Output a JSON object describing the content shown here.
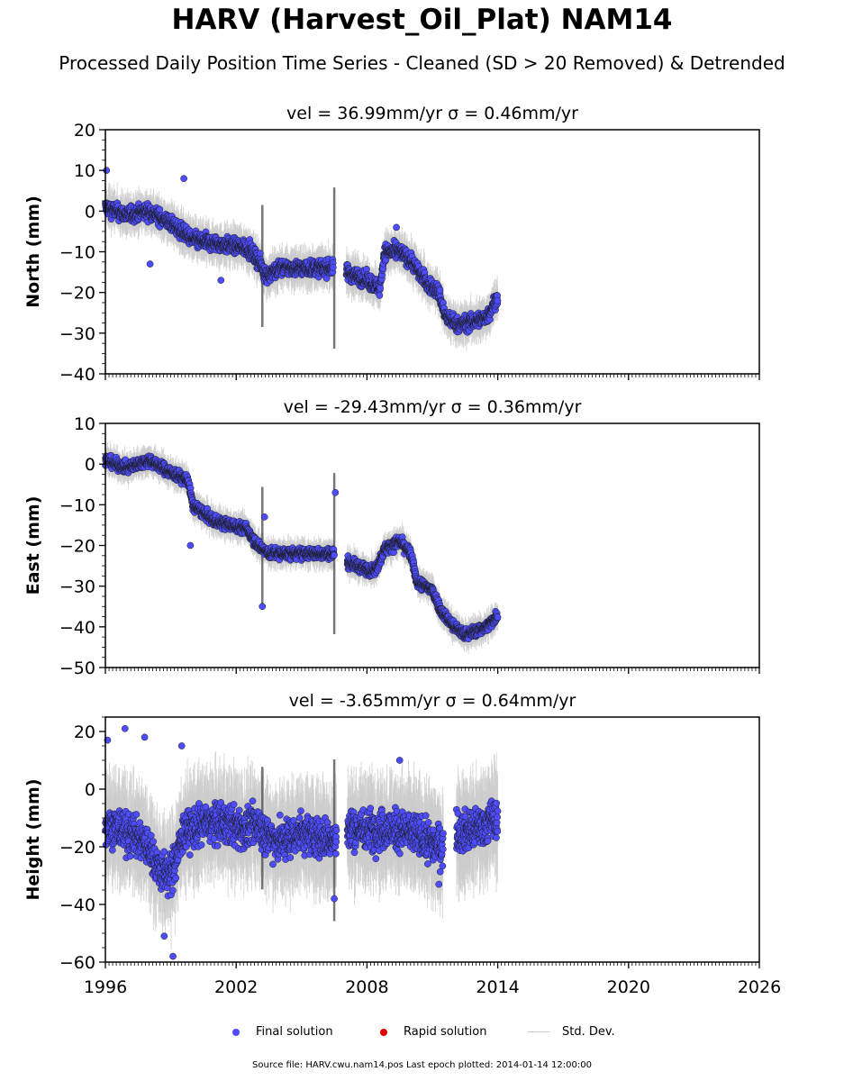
{
  "header": {
    "title": "HARV (Harvest_Oil_Plat) NAM14",
    "subtitle": "Processed Daily Position Time Series - Cleaned (SD > 20 Removed) & Detrended"
  },
  "legend": {
    "final": "Final solution",
    "rapid": "Rapid solution",
    "std": "Std. Dev."
  },
  "footer": "Source file: HARV.cwu.nam14.pos  Last epoch plotted: 2014-01-14 12:00:00",
  "colors": {
    "final": "#4d4dff",
    "rapid": "#dd0000",
    "std": "#cccccc",
    "marker_edge": "#1a1a1a"
  },
  "chart_data": [
    {
      "type": "scatter",
      "panel": "north",
      "title": "vel = 36.99mm/yr   σ = 0.46mm/yr",
      "ylabel": "North (mm)",
      "xlim": [
        1996,
        2026
      ],
      "ylim": [
        -40,
        20
      ],
      "yticks": [
        -40,
        -30,
        -20,
        -10,
        0,
        10,
        20
      ],
      "xticks": [
        1996,
        2002,
        2008,
        2014,
        2020,
        2026
      ],
      "noise": 2.2,
      "outliers": [
        [
          1996.05,
          10
        ],
        [
          1999.6,
          8
        ],
        [
          1998.05,
          -13
        ],
        [
          2001.3,
          -17
        ],
        [
          2009.35,
          -4
        ]
      ],
      "segments": [
        [
          1996.0,
          1
        ],
        [
          1997.0,
          -1
        ],
        [
          1998.0,
          0
        ],
        [
          1999.0,
          -3
        ],
        [
          2000.0,
          -7
        ],
        [
          2001.0,
          -8
        ],
        [
          2002.5,
          -9
        ],
        [
          2003.0,
          -12
        ],
        [
          2003.4,
          -16
        ],
        [
          2004.0,
          -14
        ],
        [
          2005.0,
          -14
        ],
        [
          2006.0,
          -14
        ],
        [
          2006.45,
          -14
        ],
        [
          2006.55,
          null
        ],
        [
          2007.05,
          -15
        ],
        [
          2008.0,
          -17
        ],
        [
          2008.6,
          -19
        ],
        [
          2008.8,
          -10
        ],
        [
          2009.5,
          -10
        ],
        [
          2010.0,
          -12
        ],
        [
          2010.8,
          -18
        ],
        [
          2011.3,
          -20
        ],
        [
          2011.6,
          -26
        ],
        [
          2012.2,
          -28
        ],
        [
          2013.0,
          -27
        ],
        [
          2013.5,
          -26
        ],
        [
          2014.0,
          -21
        ]
      ]
    },
    {
      "type": "scatter",
      "panel": "east",
      "title": "vel = -29.43mm/yr   σ = 0.36mm/yr",
      "ylabel": "East (mm)",
      "xlim": [
        1996,
        2026
      ],
      "ylim": [
        -50,
        10
      ],
      "yticks": [
        -50,
        -40,
        -30,
        -20,
        -10,
        0,
        10
      ],
      "xticks": [
        1996,
        2002,
        2008,
        2014,
        2020,
        2026
      ],
      "noise": 1.6,
      "outliers": [
        [
          2006.55,
          -7
        ],
        [
          2003.2,
          -35
        ],
        [
          1999.9,
          -20
        ],
        [
          2003.3,
          -13
        ]
      ],
      "segments": [
        [
          1996.0,
          1
        ],
        [
          1997.0,
          -1
        ],
        [
          1998.0,
          1
        ],
        [
          1999.0,
          -2
        ],
        [
          1999.8,
          -4
        ],
        [
          2000.0,
          -10
        ],
        [
          2001.0,
          -14
        ],
        [
          2002.5,
          -16
        ],
        [
          2003.0,
          -20
        ],
        [
          2003.5,
          -22
        ],
        [
          2004.5,
          -22
        ],
        [
          2006.0,
          -22
        ],
        [
          2006.5,
          -22
        ],
        [
          2006.55,
          null
        ],
        [
          2007.1,
          -24
        ],
        [
          2008.0,
          -26
        ],
        [
          2008.4,
          -26
        ],
        [
          2008.8,
          -21
        ],
        [
          2009.5,
          -19
        ],
        [
          2010.0,
          -22
        ],
        [
          2010.3,
          -29
        ],
        [
          2011.0,
          -31
        ],
        [
          2011.4,
          -36
        ],
        [
          2012.0,
          -40
        ],
        [
          2012.5,
          -42
        ],
        [
          2013.0,
          -41
        ],
        [
          2013.5,
          -40
        ],
        [
          2014.0,
          -37
        ]
      ]
    },
    {
      "type": "scatter",
      "panel": "height",
      "title": "vel = -3.65mm/yr   σ = 0.64mm/yr",
      "ylabel": "Height (mm)",
      "xlim": [
        1996,
        2026
      ],
      "ylim": [
        -60,
        25
      ],
      "yticks": [
        -60,
        -40,
        -20,
        0,
        20
      ],
      "xticks": [
        1996,
        2002,
        2008,
        2014,
        2020,
        2026
      ],
      "noise": 8,
      "outliers": [
        [
          1996.1,
          17
        ],
        [
          1996.9,
          21
        ],
        [
          1997.8,
          18
        ],
        [
          1998.7,
          -51
        ],
        [
          1999.1,
          -58
        ],
        [
          1999.5,
          15
        ],
        [
          2006.5,
          -38
        ],
        [
          2011.3,
          -33
        ],
        [
          2009.5,
          10
        ]
      ],
      "segments": [
        [
          1996.0,
          -12
        ],
        [
          1997.0,
          -15
        ],
        [
          1997.8,
          -18
        ],
        [
          1998.5,
          -28
        ],
        [
          1999.0,
          -30
        ],
        [
          1999.6,
          -15
        ],
        [
          2000.5,
          -12
        ],
        [
          2001.5,
          -12
        ],
        [
          2002.5,
          -14
        ],
        [
          2003.0,
          -12
        ],
        [
          2003.4,
          -16
        ],
        [
          2004.0,
          -18
        ],
        [
          2005.0,
          -15
        ],
        [
          2006.0,
          -17
        ],
        [
          2006.6,
          -18
        ],
        [
          2006.65,
          null
        ],
        [
          2007.1,
          -14
        ],
        [
          2008.0,
          -14
        ],
        [
          2009.0,
          -14
        ],
        [
          2010.0,
          -15
        ],
        [
          2010.8,
          -18
        ],
        [
          2011.5,
          -20
        ],
        [
          2011.8,
          null
        ],
        [
          2012.1,
          -15
        ],
        [
          2013.0,
          -14
        ],
        [
          2014.0,
          -10
        ]
      ]
    }
  ]
}
